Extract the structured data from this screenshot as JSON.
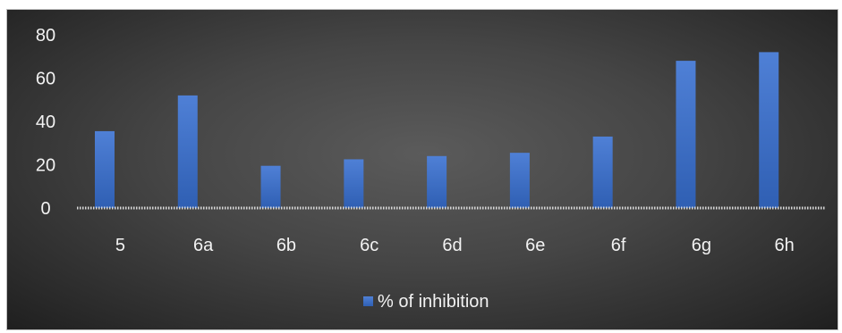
{
  "chart_data": {
    "type": "bar",
    "categories": [
      "5",
      "6a",
      "6b",
      "6c",
      "6d",
      "6e",
      "6f",
      "6g",
      "6h"
    ],
    "series": [
      {
        "name": "% of inhibition",
        "values": [
          35.5,
          52,
          19.5,
          22.5,
          24,
          25.5,
          33,
          68,
          72
        ],
        "color": "#4472c4"
      }
    ],
    "ylim": [
      0,
      80
    ],
    "yticks": [
      0,
      20,
      40,
      60,
      80
    ],
    "grid": false,
    "legend_position": "bottom",
    "background": "dark-gradient"
  }
}
